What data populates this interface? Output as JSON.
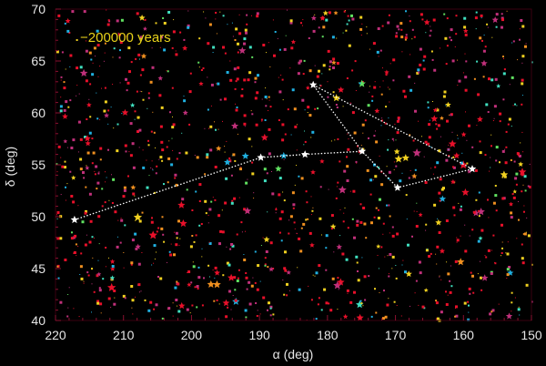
{
  "chart_data": {
    "type": "scatter",
    "annotation": "−200000  years",
    "xlabel": "α (deg)",
    "ylabel": "δ (deg)",
    "xlim": [
      220,
      150
    ],
    "ylim": [
      40,
      70
    ],
    "xticks": [
      "220",
      "210",
      "200",
      "190",
      "180",
      "170",
      "160",
      "150"
    ],
    "yticks": [
      "40",
      "45",
      "50",
      "55",
      "60",
      "65",
      "70"
    ],
    "grid": false,
    "background": "#000000",
    "star_colors": [
      "#e8102a",
      "#c0307a",
      "#f0d020",
      "#f09020",
      "#20b0e0",
      "#40e0c0",
      "#60e060"
    ],
    "asterism": {
      "color": "#ffffff",
      "stars": [
        {
          "ra": 217.2,
          "dec": 49.7
        },
        {
          "ra": 189.8,
          "dec": 55.7
        },
        {
          "ra": 183.3,
          "dec": 56.0
        },
        {
          "ra": 174.9,
          "dec": 56.3
        },
        {
          "ra": 182.1,
          "dec": 62.7
        },
        {
          "ra": 158.7,
          "dec": 54.6
        },
        {
          "ra": 169.7,
          "dec": 52.8
        }
      ],
      "lines": [
        [
          0,
          1
        ],
        [
          1,
          2
        ],
        [
          2,
          3
        ],
        [
          3,
          4
        ],
        [
          4,
          5
        ],
        [
          5,
          6
        ],
        [
          6,
          3
        ]
      ]
    }
  }
}
